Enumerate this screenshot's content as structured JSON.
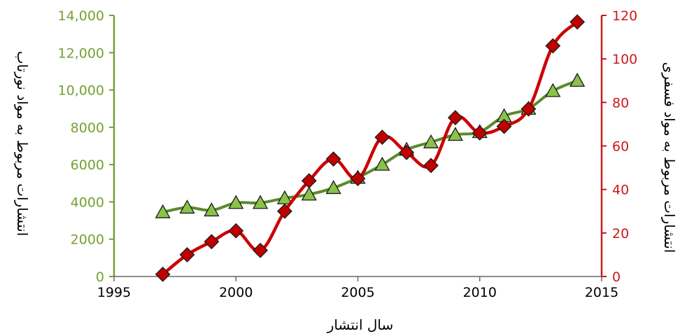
{
  "colors": {
    "left_series": "#5a8a2a",
    "left_marker_fill": "#8bc34a",
    "left_axis": "#77a032",
    "right_series": "#cc0000",
    "right_marker_fill": "#c00000",
    "right_axis": "#cc1a1a"
  },
  "chart_data": {
    "type": "line",
    "xlabel": "سال انتشار",
    "ylabel_left": "انتشارات مربوط به مواد نورتاب",
    "ylabel_right": "انتشارات مربوط به مواد فسفری",
    "xlim": [
      1995,
      2015
    ],
    "ylim_left": [
      0,
      14000
    ],
    "ylim_right": [
      0,
      120
    ],
    "x_ticks": [
      "1995",
      "2000",
      "2005",
      "2010",
      "2015"
    ],
    "y_left_ticks": [
      "0",
      "2000",
      "4000",
      "6000",
      "8000",
      "10,000",
      "12,000",
      "14,000"
    ],
    "y_right_ticks": [
      "0",
      "20",
      "40",
      "60",
      "80",
      "100",
      "120"
    ],
    "grid": false,
    "series": [
      {
        "axis": "left",
        "marker": "triangle-icon",
        "x": [
          1997,
          1998,
          1999,
          2000,
          2001,
          2002,
          2003,
          2004,
          2005,
          2006,
          2007,
          2008,
          2009,
          2010,
          2011,
          2012,
          2013,
          2014
        ],
        "values": [
          3450,
          3700,
          3550,
          3950,
          3950,
          4200,
          4400,
          4750,
          5300,
          6000,
          6800,
          7200,
          7600,
          7750,
          8600,
          9000,
          9950,
          10500
        ]
      },
      {
        "axis": "right",
        "marker": "diamond-icon",
        "x": [
          1997,
          1998,
          1999,
          2000,
          2001,
          2002,
          2003,
          2004,
          2005,
          2006,
          2007,
          2008,
          2009,
          2010,
          2011,
          2012,
          2013,
          2014
        ],
        "values": [
          1,
          10,
          16,
          21,
          12,
          30,
          44,
          54,
          45,
          64,
          57,
          51,
          73,
          66,
          69,
          77,
          106,
          117
        ]
      }
    ]
  }
}
